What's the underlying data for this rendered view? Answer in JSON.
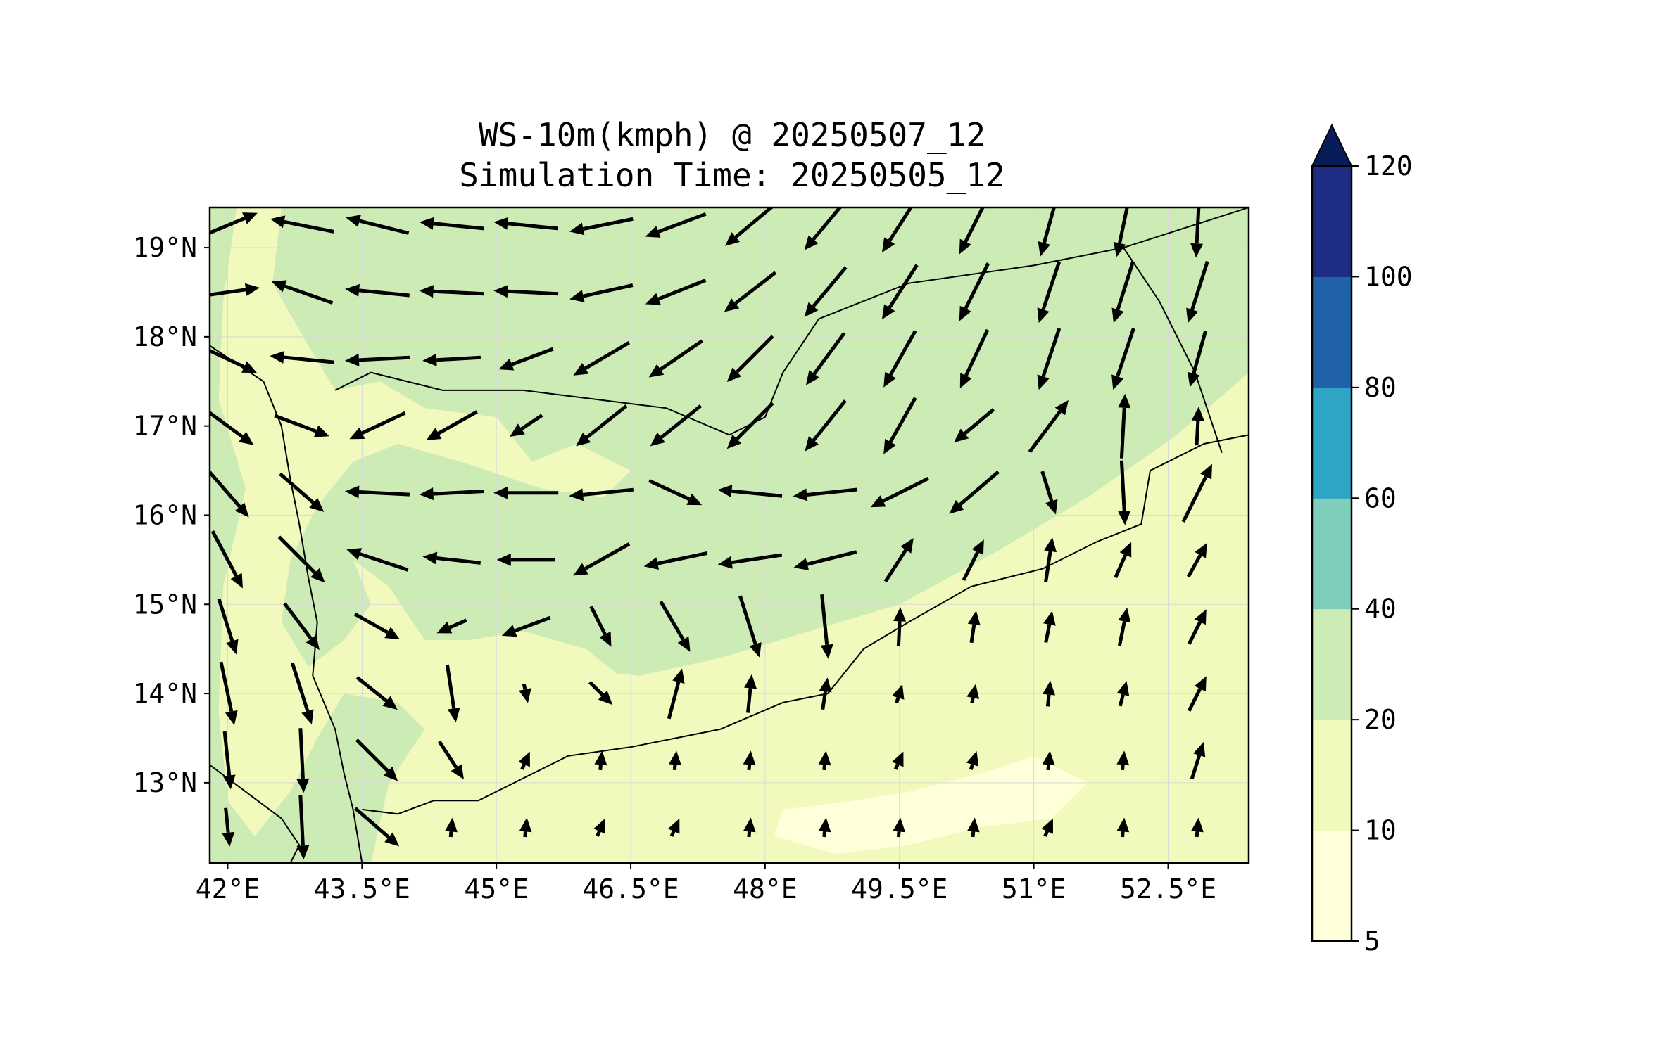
{
  "title": {
    "line1": "WS-10m(kmph) @ 20250507_12",
    "line2": "Simulation Time: 20250505_12"
  },
  "map": {
    "lon_range": [
      41.8,
      53.4
    ],
    "lat_range": [
      12.1,
      19.45
    ],
    "x_ticks": [
      {
        "value": 42,
        "label": "42°E"
      },
      {
        "value": 43.5,
        "label": "43.5°E"
      },
      {
        "value": 45,
        "label": "45°E"
      },
      {
        "value": 46.5,
        "label": "46.5°E"
      },
      {
        "value": 48,
        "label": "48°E"
      },
      {
        "value": 49.5,
        "label": "49.5°E"
      },
      {
        "value": 51,
        "label": "51°E"
      },
      {
        "value": 52.5,
        "label": "52.5°E"
      }
    ],
    "y_ticks": [
      {
        "value": 13,
        "label": "13°N"
      },
      {
        "value": 14,
        "label": "14°N"
      },
      {
        "value": 15,
        "label": "15°N"
      },
      {
        "value": 16,
        "label": "16°N"
      },
      {
        "value": 17,
        "label": "17°N"
      },
      {
        "value": 18,
        "label": "18°N"
      },
      {
        "value": 19,
        "label": "19°N"
      }
    ],
    "grid": true,
    "field_variable": "WS-10m",
    "field_units": "kmph"
  },
  "colorbar": {
    "levels": [
      5,
      10,
      20,
      40,
      60,
      80,
      100,
      120
    ],
    "labels": [
      "5",
      "10",
      "20",
      "40",
      "60",
      "80",
      "100",
      "120"
    ],
    "colors": [
      "#ffffd9",
      "#f1f9bd",
      "#cdebb4",
      "#7fcdbb",
      "#2fa5c5",
      "#2062aa",
      "#1d2d84"
    ],
    "extend_color": "#081d58",
    "extend": "max"
  },
  "colors": {
    "land_boundary": "#000000",
    "arrow": "#000000",
    "grid": "#d9d9d9"
  },
  "wind_field": {
    "lons": [
      42.0,
      42.83,
      43.67,
      44.5,
      45.33,
      46.17,
      47.0,
      47.83,
      48.67,
      49.5,
      50.33,
      51.17,
      52.0,
      52.83
    ],
    "lats": [
      19.25,
      18.5,
      17.75,
      17.0,
      16.25,
      15.5,
      14.75,
      14.0,
      13.25,
      12.5
    ],
    "u": [
      [
        0.6,
        -1.0,
        -1.0,
        -1.0,
        -1.0,
        -1.0,
        -0.8,
        -0.6,
        -0.5,
        -0.45,
        -0.4,
        -0.25,
        -0.2,
        -0.05
      ],
      [
        0.7,
        -1.0,
        -1.0,
        -1.0,
        -1.0,
        -0.9,
        -0.75,
        -0.65,
        -0.5,
        -0.45,
        -0.4,
        -0.3,
        -0.3,
        -0.3
      ],
      [
        0.85,
        -1.0,
        -1.0,
        -0.9,
        -0.8,
        -0.85,
        -0.8,
        -0.65,
        -0.55,
        -0.45,
        -0.4,
        -0.3,
        -0.3,
        -0.25
      ],
      [
        0.75,
        0.8,
        -0.85,
        -0.8,
        -0.6,
        -0.75,
        -0.75,
        -0.7,
        -0.6,
        -0.45,
        -0.6,
        0.6,
        0.05,
        0.05
      ],
      [
        0.65,
        0.75,
        -1.0,
        -1.0,
        -1.0,
        -1.0,
        0.65,
        -1.0,
        -0.95,
        -0.8,
        -0.7,
        0.3,
        0.05,
        0.45
      ],
      [
        0.45,
        0.7,
        -0.9,
        -0.9,
        -0.85,
        -0.8,
        -0.95,
        -1.0,
        -1.0,
        0.55,
        0.45,
        0.15,
        0.4,
        0.5
      ],
      [
        0.3,
        0.6,
        0.8,
        -0.8,
        -0.8,
        0.45,
        0.5,
        0.3,
        0.1,
        0.05,
        0.15,
        0.2,
        0.2,
        0.45
      ],
      [
        0.2,
        0.3,
        0.75,
        0.15,
        0.2,
        0.7,
        0.25,
        0.1,
        0.15,
        0.3,
        0.2,
        0.1,
        0.25,
        0.45
      ],
      [
        0.1,
        0.05,
        0.7,
        0.55,
        0.4,
        0.1,
        0.1,
        0.1,
        0.1,
        0.4,
        0.3,
        0.1,
        0.1,
        0.3
      ],
      [
        0.1,
        0.05,
        0.75,
        0.1,
        0.1,
        0.4,
        0.4,
        0.1,
        0.1,
        0.1,
        0.1,
        0.4,
        0.1,
        0.1
      ]
    ],
    "v": [
      [
        0.25,
        0.2,
        0.25,
        0.1,
        0.1,
        -0.2,
        -0.3,
        -0.5,
        -0.6,
        -0.7,
        -0.8,
        -0.9,
        -0.95,
        -0.95
      ],
      [
        0.1,
        0.35,
        0.1,
        0.05,
        0.05,
        -0.2,
        -0.3,
        -0.5,
        -0.6,
        -0.7,
        -0.8,
        -0.9,
        -0.95,
        -0.95
      ],
      [
        -0.4,
        0.1,
        -0.05,
        -0.05,
        -0.3,
        -0.5,
        -0.55,
        -0.65,
        -0.75,
        -0.8,
        -0.85,
        -0.9,
        -0.9,
        -0.9
      ],
      [
        -0.55,
        -0.3,
        -0.4,
        -0.45,
        -0.4,
        -0.6,
        -0.6,
        -0.7,
        -0.75,
        -0.8,
        -0.5,
        0.8,
        0.95,
        0.95
      ],
      [
        -0.75,
        -0.65,
        0.05,
        -0.05,
        0.0,
        -0.1,
        -0.3,
        0.1,
        -0.1,
        -0.4,
        -0.6,
        -0.95,
        -0.95,
        0.9
      ],
      [
        -0.85,
        -0.7,
        0.3,
        0.1,
        0.0,
        -0.45,
        -0.2,
        -0.15,
        -0.25,
        0.85,
        0.9,
        1.0,
        0.9,
        0.9
      ],
      [
        -0.95,
        -0.8,
        -0.45,
        -0.35,
        -0.3,
        -0.9,
        -0.85,
        -0.95,
        -1.0,
        1.0,
        1.0,
        1.0,
        1.0,
        0.9
      ],
      [
        -0.95,
        -0.95,
        -0.6,
        -1.0,
        -0.95,
        -0.7,
        0.95,
        1.0,
        1.0,
        0.95,
        1.0,
        1.0,
        0.95,
        0.9
      ],
      [
        -0.95,
        -1.0,
        -0.7,
        -0.85,
        0.9,
        1.0,
        1.0,
        1.0,
        1.0,
        0.9,
        0.95,
        1.0,
        1.0,
        0.95
      ],
      [
        -0.95,
        -1.0,
        -0.65,
        1.0,
        1.0,
        0.9,
        0.9,
        1.0,
        1.0,
        1.0,
        1.0,
        0.9,
        1.0,
        1.0
      ]
    ],
    "magnitude": [
      [
        1.0,
        1.0,
        1.0,
        1.0,
        1.0,
        1.0,
        1.0,
        1.0,
        1.0,
        1.0,
        1.0,
        1.0,
        1.0,
        1.0
      ],
      [
        1.0,
        1.0,
        1.0,
        1.0,
        1.0,
        1.0,
        1.0,
        1.0,
        1.0,
        1.0,
        1.0,
        1.0,
        1.0,
        1.0
      ],
      [
        1.0,
        1.0,
        1.0,
        0.9,
        0.9,
        1.0,
        1.0,
        1.0,
        1.0,
        1.0,
        1.0,
        1.0,
        1.0,
        0.9
      ],
      [
        1.0,
        0.9,
        0.95,
        0.9,
        0.6,
        1.0,
        1.0,
        1.0,
        1.0,
        1.0,
        0.8,
        1.0,
        1.0,
        0.6
      ],
      [
        1.0,
        0.9,
        1.0,
        1.0,
        1.0,
        1.0,
        0.9,
        1.0,
        1.0,
        1.0,
        1.0,
        0.7,
        1.0,
        1.0
      ],
      [
        1.0,
        1.0,
        1.0,
        0.9,
        0.9,
        1.0,
        1.0,
        1.0,
        1.0,
        0.8,
        0.7,
        0.7,
        0.6,
        0.6
      ],
      [
        0.9,
        0.9,
        0.8,
        0.5,
        0.8,
        0.7,
        0.9,
        1.0,
        1.0,
        0.6,
        0.5,
        0.5,
        0.6,
        0.6
      ],
      [
        1.0,
        1.0,
        0.8,
        0.9,
        0.3,
        0.5,
        0.8,
        0.6,
        0.5,
        0.3,
        0.3,
        0.4,
        0.4,
        0.6
      ],
      [
        0.9,
        1.0,
        0.9,
        0.7,
        0.3,
        0.3,
        0.3,
        0.3,
        0.3,
        0.3,
        0.3,
        0.3,
        0.3,
        0.6
      ],
      [
        0.6,
        1.0,
        0.9,
        0.3,
        0.3,
        0.3,
        0.3,
        0.3,
        0.3,
        0.3,
        0.3,
        0.3,
        0.3,
        0.3
      ]
    ]
  },
  "speed_regions": [
    {
      "level": 20,
      "label": "20-40 kmph",
      "polygon": [
        [
          41.8,
          19.45
        ],
        [
          53.4,
          19.45
        ],
        [
          53.4,
          17.6
        ],
        [
          52.6,
          16.9
        ],
        [
          51.6,
          16.2
        ],
        [
          50.6,
          15.6
        ],
        [
          49.5,
          15.0
        ],
        [
          48.5,
          14.7
        ],
        [
          47.5,
          14.4
        ],
        [
          46.6,
          14.2
        ],
        [
          45.5,
          14.3
        ],
        [
          44.8,
          14.1
        ],
        [
          44.2,
          13.6
        ],
        [
          43.8,
          13.0
        ],
        [
          43.6,
          12.1
        ],
        [
          41.8,
          12.1
        ]
      ]
    },
    {
      "level": 10,
      "label": "10-20 kmph",
      "polygon": [
        [
          42.1,
          19.45
        ],
        [
          42.6,
          19.45
        ],
        [
          42.5,
          18.6
        ],
        [
          42.9,
          17.9
        ],
        [
          43.2,
          17.4
        ],
        [
          43.7,
          17.5
        ],
        [
          44.2,
          17.2
        ],
        [
          45.0,
          17.1
        ],
        [
          45.4,
          16.6
        ],
        [
          45.9,
          16.8
        ],
        [
          46.5,
          16.5
        ],
        [
          46.2,
          16.2
        ],
        [
          45.5,
          16.3
        ],
        [
          44.6,
          16.6
        ],
        [
          43.9,
          16.8
        ],
        [
          43.4,
          16.6
        ],
        [
          43.0,
          16.1
        ],
        [
          42.7,
          15.5
        ],
        [
          42.6,
          14.8
        ],
        [
          42.9,
          14.3
        ],
        [
          43.3,
          14.6
        ],
        [
          43.6,
          15.0
        ],
        [
          43.4,
          15.5
        ],
        [
          43.8,
          15.2
        ],
        [
          44.2,
          14.6
        ],
        [
          44.7,
          14.6
        ],
        [
          45.3,
          14.7
        ],
        [
          46.0,
          14.5
        ],
        [
          46.5,
          14.1
        ],
        [
          47.1,
          13.9
        ],
        [
          48.0,
          13.7
        ],
        [
          49.0,
          13.9
        ],
        [
          50.0,
          14.3
        ],
        [
          51.0,
          14.8
        ],
        [
          52.0,
          15.2
        ],
        [
          53.4,
          15.6
        ],
        [
          53.4,
          12.1
        ],
        [
          44.2,
          12.1
        ],
        [
          44.6,
          12.8
        ],
        [
          44.4,
          13.4
        ],
        [
          43.9,
          13.9
        ],
        [
          43.3,
          14.0
        ],
        [
          43.0,
          13.5
        ],
        [
          42.7,
          12.9
        ],
        [
          42.3,
          12.4
        ],
        [
          42.0,
          12.8
        ],
        [
          41.9,
          13.8
        ],
        [
          41.95,
          15.2
        ],
        [
          42.2,
          16.3
        ],
        [
          41.9,
          17.3
        ],
        [
          41.95,
          18.4
        ]
      ]
    },
    {
      "level": 5,
      "label": "5-10 kmph",
      "polygon": [
        [
          48.2,
          12.7
        ],
        [
          49.0,
          12.8
        ],
        [
          49.6,
          12.9
        ],
        [
          50.4,
          13.1
        ],
        [
          51.0,
          13.3
        ],
        [
          51.6,
          13.0
        ],
        [
          51.2,
          12.6
        ],
        [
          50.4,
          12.5
        ],
        [
          49.6,
          12.3
        ],
        [
          48.8,
          12.2
        ],
        [
          48.1,
          12.4
        ]
      ]
    }
  ],
  "boundaries": [
    {
      "name": "coastline-red-sea",
      "lonlat": [
        [
          41.8,
          17.9
        ],
        [
          42.4,
          17.5
        ],
        [
          42.6,
          17.0
        ],
        [
          42.7,
          16.4
        ],
        [
          42.8,
          15.9
        ],
        [
          42.9,
          15.3
        ],
        [
          43.0,
          14.8
        ],
        [
          42.95,
          14.2
        ],
        [
          43.2,
          13.6
        ],
        [
          43.3,
          13.1
        ],
        [
          43.4,
          12.7
        ],
        [
          43.5,
          12.1
        ]
      ]
    },
    {
      "name": "coastline-gulf-of-aden",
      "lonlat": [
        [
          43.5,
          12.7
        ],
        [
          43.9,
          12.65
        ],
        [
          44.3,
          12.8
        ],
        [
          44.8,
          12.8
        ],
        [
          45.2,
          13.0
        ],
        [
          45.8,
          13.3
        ],
        [
          46.5,
          13.4
        ],
        [
          47.5,
          13.6
        ],
        [
          48.2,
          13.9
        ],
        [
          48.7,
          14.0
        ],
        [
          49.1,
          14.5
        ],
        [
          49.6,
          14.8
        ],
        [
          50.3,
          15.2
        ],
        [
          51.1,
          15.4
        ],
        [
          51.7,
          15.7
        ],
        [
          52.2,
          15.9
        ],
        [
          52.3,
          16.5
        ],
        [
          52.9,
          16.8
        ],
        [
          53.4,
          16.9
        ]
      ]
    },
    {
      "name": "border-saudi-yemen",
      "lonlat": [
        [
          43.2,
          17.4
        ],
        [
          43.6,
          17.6
        ],
        [
          44.4,
          17.4
        ],
        [
          45.3,
          17.4
        ],
        [
          46.1,
          17.3
        ],
        [
          46.9,
          17.2
        ],
        [
          47.6,
          16.9
        ],
        [
          48.0,
          17.1
        ],
        [
          48.2,
          17.6
        ],
        [
          48.6,
          18.2
        ],
        [
          49.6,
          18.6
        ],
        [
          51.0,
          18.8
        ],
        [
          52.0,
          19.0
        ],
        [
          53.4,
          19.45
        ]
      ]
    },
    {
      "name": "border-yemen-oman",
      "lonlat": [
        [
          52.0,
          19.0
        ],
        [
          52.4,
          18.4
        ],
        [
          52.8,
          17.6
        ],
        [
          53.1,
          16.7
        ]
      ]
    },
    {
      "name": "coastline-africa",
      "lonlat": [
        [
          41.8,
          13.2
        ],
        [
          42.2,
          12.9
        ],
        [
          42.6,
          12.6
        ],
        [
          42.8,
          12.3
        ],
        [
          42.7,
          12.1
        ]
      ]
    }
  ]
}
